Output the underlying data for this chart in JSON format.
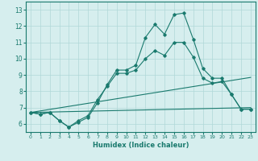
{
  "xlabel": "Humidex (Indice chaleur)",
  "bg_color": "#d6eeee",
  "line_color": "#1a7a6e",
  "grid_color": "#b0d8d8",
  "xlim": [
    -0.5,
    23.5
  ],
  "ylim": [
    5.5,
    13.5
  ],
  "xticks": [
    0,
    1,
    2,
    3,
    4,
    5,
    6,
    7,
    8,
    9,
    10,
    11,
    12,
    13,
    14,
    15,
    16,
    17,
    18,
    19,
    20,
    21,
    22,
    23
  ],
  "yticks": [
    6,
    7,
    8,
    9,
    10,
    11,
    12,
    13
  ],
  "series1": {
    "x": [
      0,
      1,
      2,
      3,
      4,
      5,
      6,
      7,
      8,
      9,
      10,
      11,
      12,
      13,
      14,
      15,
      16,
      17,
      18,
      19,
      20,
      21,
      22,
      23
    ],
    "y": [
      6.7,
      6.6,
      6.7,
      6.2,
      5.8,
      6.1,
      6.4,
      7.3,
      8.4,
      9.3,
      9.3,
      9.6,
      11.3,
      12.1,
      11.5,
      12.7,
      12.8,
      11.2,
      9.4,
      8.8,
      8.8,
      7.8,
      6.9,
      6.9
    ]
  },
  "series2": {
    "x": [
      0,
      1,
      2,
      3,
      4,
      5,
      6,
      7,
      8,
      9,
      10,
      11,
      12,
      13,
      14,
      15,
      16,
      17,
      18,
      19,
      20,
      21,
      22,
      23
    ],
    "y": [
      6.7,
      6.6,
      6.7,
      6.2,
      5.8,
      6.2,
      6.5,
      7.5,
      8.3,
      9.1,
      9.1,
      9.3,
      10.0,
      10.5,
      10.2,
      11.0,
      11.0,
      10.1,
      8.8,
      8.5,
      8.6,
      7.8,
      6.9,
      6.9
    ]
  },
  "series3": {
    "x": [
      0,
      23
    ],
    "y": [
      6.7,
      8.85
    ]
  },
  "series4": {
    "x": [
      0,
      23
    ],
    "y": [
      6.7,
      7.0
    ]
  }
}
